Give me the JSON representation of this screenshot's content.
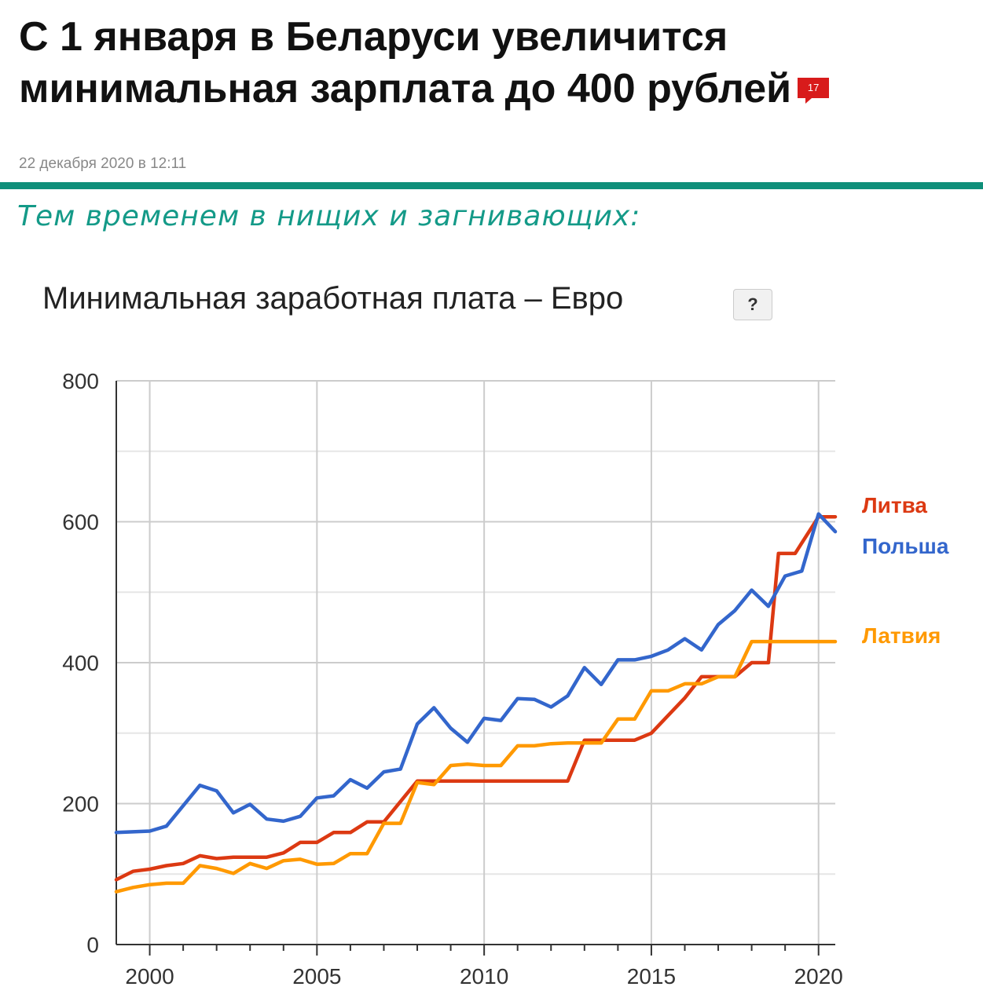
{
  "article": {
    "title": "С 1 января в Беларуси увеличится минимальная зарплата до 400 рублей",
    "comments_count": "17",
    "date": "22 декабря 2020 в 12:11"
  },
  "caption": "Тем временем в нищих и загнивающих:",
  "chart": {
    "title": "Минимальная заработная плата – Евро",
    "help_label": "?"
  },
  "colors": {
    "accent_bar": "#0f8f7a",
    "caption_text": "#149a88",
    "badge": "#d81b1b"
  },
  "chart_data": {
    "type": "line",
    "title": "Минимальная заработная плата – Евро",
    "xlabel": "",
    "ylabel": "",
    "xlim": [
      1999,
      2020.5
    ],
    "ylim": [
      0,
      800
    ],
    "x_ticks": [
      2000,
      2005,
      2010,
      2015,
      2020
    ],
    "y_ticks": [
      0,
      200,
      400,
      600,
      800
    ],
    "grid": true,
    "legend": "right (labels at line ends)",
    "series": [
      {
        "name": "Литва",
        "color": "#dc3912",
        "points": [
          [
            1999.0,
            92
          ],
          [
            1999.5,
            104
          ],
          [
            2000.0,
            107
          ],
          [
            2000.5,
            112
          ],
          [
            2001.0,
            115
          ],
          [
            2001.5,
            126
          ],
          [
            2002.0,
            122
          ],
          [
            2002.5,
            124
          ],
          [
            2003.0,
            124
          ],
          [
            2003.5,
            124
          ],
          [
            2004.0,
            130
          ],
          [
            2004.5,
            145
          ],
          [
            2005.0,
            145
          ],
          [
            2005.5,
            159
          ],
          [
            2006.0,
            159
          ],
          [
            2006.5,
            174
          ],
          [
            2007.0,
            174
          ],
          [
            2007.5,
            203
          ],
          [
            2008.0,
            232
          ],
          [
            2008.5,
            232
          ],
          [
            2009.0,
            232
          ],
          [
            2010.0,
            232
          ],
          [
            2011.0,
            232
          ],
          [
            2012.0,
            232
          ],
          [
            2012.5,
            232
          ],
          [
            2013.0,
            290
          ],
          [
            2013.5,
            290
          ],
          [
            2014.0,
            290
          ],
          [
            2014.5,
            290
          ],
          [
            2015.0,
            300
          ],
          [
            2015.5,
            325
          ],
          [
            2016.0,
            350
          ],
          [
            2016.5,
            380
          ],
          [
            2017.0,
            380
          ],
          [
            2017.5,
            380
          ],
          [
            2018.0,
            400
          ],
          [
            2018.5,
            400
          ],
          [
            2018.8,
            555
          ],
          [
            2019.0,
            555
          ],
          [
            2019.3,
            555
          ],
          [
            2020.0,
            607
          ],
          [
            2020.5,
            607
          ]
        ]
      },
      {
        "name": "Польша",
        "color": "#3366cc",
        "points": [
          [
            1999.0,
            159
          ],
          [
            1999.5,
            160
          ],
          [
            2000.0,
            161
          ],
          [
            2000.5,
            168
          ],
          [
            2001.0,
            197
          ],
          [
            2001.5,
            226
          ],
          [
            2002.0,
            218
          ],
          [
            2002.5,
            187
          ],
          [
            2003.0,
            199
          ],
          [
            2003.5,
            178
          ],
          [
            2004.0,
            175
          ],
          [
            2004.5,
            182
          ],
          [
            2005.0,
            208
          ],
          [
            2005.5,
            211
          ],
          [
            2006.0,
            234
          ],
          [
            2006.5,
            222
          ],
          [
            2007.0,
            245
          ],
          [
            2007.5,
            249
          ],
          [
            2008.0,
            313
          ],
          [
            2008.5,
            336
          ],
          [
            2009.0,
            307
          ],
          [
            2009.5,
            287
          ],
          [
            2010.0,
            321
          ],
          [
            2010.5,
            318
          ],
          [
            2011.0,
            349
          ],
          [
            2011.5,
            348
          ],
          [
            2012.0,
            337
          ],
          [
            2012.5,
            353
          ],
          [
            2013.0,
            393
          ],
          [
            2013.5,
            369
          ],
          [
            2014.0,
            404
          ],
          [
            2014.5,
            404
          ],
          [
            2015.0,
            409
          ],
          [
            2015.5,
            418
          ],
          [
            2016.0,
            434
          ],
          [
            2016.5,
            418
          ],
          [
            2017.0,
            454
          ],
          [
            2017.5,
            474
          ],
          [
            2018.0,
            503
          ],
          [
            2018.5,
            480
          ],
          [
            2019.0,
            523
          ],
          [
            2019.5,
            530
          ],
          [
            2020.0,
            611
          ],
          [
            2020.5,
            586
          ]
        ]
      },
      {
        "name": "Латвия",
        "color": "#ff9900",
        "points": [
          [
            1999.0,
            75
          ],
          [
            1999.5,
            81
          ],
          [
            2000.0,
            85
          ],
          [
            2000.5,
            87
          ],
          [
            2001.0,
            87
          ],
          [
            2001.5,
            112
          ],
          [
            2002.0,
            108
          ],
          [
            2002.5,
            101
          ],
          [
            2003.0,
            115
          ],
          [
            2003.5,
            108
          ],
          [
            2004.0,
            119
          ],
          [
            2004.5,
            121
          ],
          [
            2005.0,
            114
          ],
          [
            2005.5,
            115
          ],
          [
            2006.0,
            129
          ],
          [
            2006.5,
            129
          ],
          [
            2007.0,
            172
          ],
          [
            2007.5,
            172
          ],
          [
            2008.0,
            230
          ],
          [
            2008.5,
            227
          ],
          [
            2009.0,
            254
          ],
          [
            2009.5,
            256
          ],
          [
            2010.0,
            254
          ],
          [
            2010.5,
            254
          ],
          [
            2011.0,
            282
          ],
          [
            2011.5,
            282
          ],
          [
            2012.0,
            285
          ],
          [
            2012.5,
            286
          ],
          [
            2013.0,
            286
          ],
          [
            2013.5,
            286
          ],
          [
            2014.0,
            320
          ],
          [
            2014.5,
            320
          ],
          [
            2015.0,
            360
          ],
          [
            2015.5,
            360
          ],
          [
            2016.0,
            370
          ],
          [
            2016.5,
            370
          ],
          [
            2017.0,
            380
          ],
          [
            2017.5,
            380
          ],
          [
            2018.0,
            430
          ],
          [
            2018.5,
            430
          ],
          [
            2019.0,
            430
          ],
          [
            2019.5,
            430
          ],
          [
            2020.0,
            430
          ],
          [
            2020.5,
            430
          ]
        ]
      }
    ]
  }
}
